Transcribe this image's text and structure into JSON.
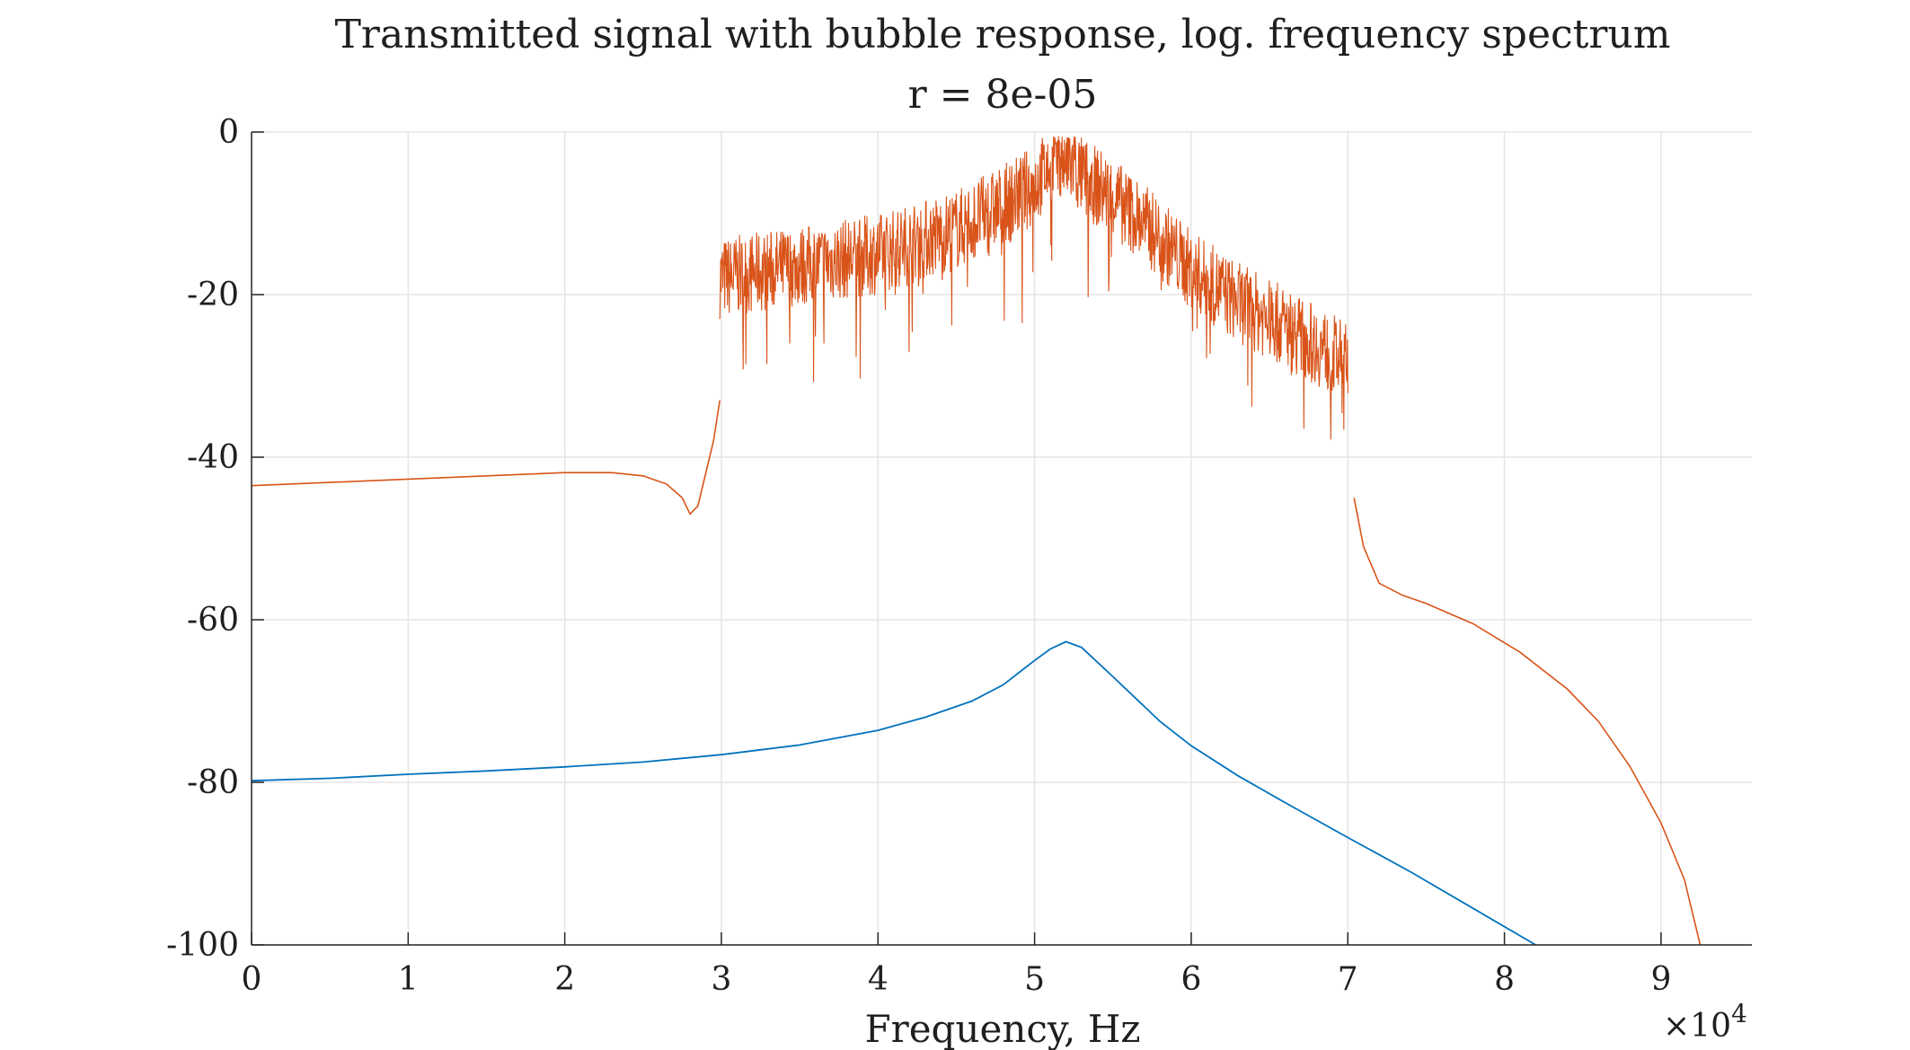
{
  "chart_data": {
    "type": "line",
    "title": "Transmitted signal with bubble response, log. frequency spectrum",
    "subtitle": "r = 8e-05",
    "xlabel": "Frequency, Hz",
    "ylabel": "",
    "x_exponent_label": "×10",
    "x_exponent_power": "4",
    "xlim": [
      0,
      95800
    ],
    "ylim": [
      -100,
      0
    ],
    "grid": true,
    "x_ticks": [
      0,
      10000,
      20000,
      30000,
      40000,
      50000,
      60000,
      70000,
      80000,
      90000
    ],
    "x_tick_labels": [
      "0",
      "1",
      "2",
      "3",
      "4",
      "5",
      "6",
      "7",
      "8",
      "9"
    ],
    "y_ticks": [
      0,
      -20,
      -40,
      -60,
      -80,
      -100
    ],
    "y_tick_labels": [
      "0",
      "-20",
      "-40",
      "-60",
      "-80",
      "-100"
    ],
    "series": [
      {
        "color": "#0072BD",
        "x": [
          0,
          5000,
          10000,
          15000,
          20000,
          25000,
          30000,
          35000,
          40000,
          43000,
          46000,
          48000,
          50000,
          51000,
          52000,
          53000,
          55000,
          58000,
          60000,
          63000,
          66000,
          70000,
          74000,
          78000,
          82000
        ],
        "y": [
          -79.8,
          -79.5,
          -79.0,
          -78.6,
          -78.1,
          -77.5,
          -76.6,
          -75.4,
          -73.6,
          -72.0,
          -70.0,
          -68.0,
          -65.0,
          -63.6,
          -62.7,
          -63.4,
          -67.0,
          -72.5,
          -75.5,
          -79.2,
          -82.5,
          -86.8,
          -91.0,
          -95.5,
          -100.0
        ]
      },
      {
        "color": "#D95319",
        "noise_band": {
          "x_range": [
            29900,
            70000
          ],
          "envelope_x": [
            29900,
            35000,
            40000,
            45000,
            48000,
            50000,
            51500,
            53000,
            55000,
            58000,
            60000,
            63000,
            66000,
            70000
          ],
          "envelope_y": [
            -18.0,
            -16.5,
            -15.0,
            -12.0,
            -9.0,
            -6.5,
            -3.0,
            -5.5,
            -8.0,
            -13.0,
            -17.0,
            -21.0,
            -24.0,
            -28.5
          ],
          "spread_db": 5
        },
        "x": [
          0,
          5000,
          10000,
          15000,
          20000,
          23000,
          25000,
          26500,
          27500,
          28000,
          28500,
          29500,
          29900,
          70000,
          70400,
          71000,
          72000,
          73500,
          75000,
          78000,
          81000,
          84000,
          86000,
          88000,
          90000,
          91500,
          92500
        ],
        "y": [
          -43.5,
          -43.1,
          -42.7,
          -42.3,
          -41.9,
          -41.9,
          -42.3,
          -43.3,
          -45.0,
          -47.0,
          -46.0,
          -38.0,
          -33.0,
          -40.0,
          -45.0,
          -51.0,
          -55.5,
          -57.0,
          -58.0,
          -60.5,
          -64.0,
          -68.5,
          -72.5,
          -78.0,
          -85.0,
          -92.0,
          -100.0
        ]
      }
    ]
  }
}
